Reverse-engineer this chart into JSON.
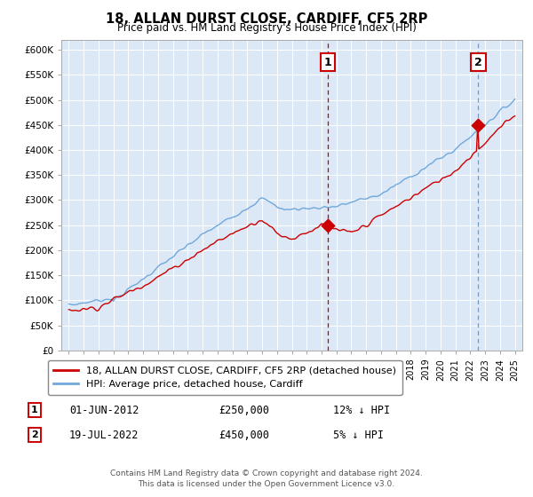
{
  "title": "18, ALLAN DURST CLOSE, CARDIFF, CF5 2RP",
  "subtitle": "Price paid vs. HM Land Registry's House Price Index (HPI)",
  "ylabel_ticks": [
    "£0",
    "£50K",
    "£100K",
    "£150K",
    "£200K",
    "£250K",
    "£300K",
    "£350K",
    "£400K",
    "£450K",
    "£500K",
    "£550K",
    "£600K"
  ],
  "ylim": [
    0,
    620000
  ],
  "ytick_vals": [
    0,
    50000,
    100000,
    150000,
    200000,
    250000,
    300000,
    350000,
    400000,
    450000,
    500000,
    550000,
    600000
  ],
  "sale1_date_x": 2012.42,
  "sale1_price": 250000,
  "sale1_label": "1",
  "sale1_date_str": "01-JUN-2012",
  "sale1_price_str": "£250,000",
  "sale1_hpi_str": "12% ↓ HPI",
  "sale2_date_x": 2022.54,
  "sale2_price": 450000,
  "sale2_label": "2",
  "sale2_date_str": "19-JUL-2022",
  "sale2_price_str": "£450,000",
  "sale2_hpi_str": "5% ↓ HPI",
  "hpi_line_color": "#6fa8dc",
  "price_line_color": "#cc0000",
  "vline1_color": "#cc0000",
  "vline2_color": "#7799bb",
  "bg_color": "#dce8f5",
  "legend_label_price": "18, ALLAN DURST CLOSE, CARDIFF, CF5 2RP (detached house)",
  "legend_label_hpi": "HPI: Average price, detached house, Cardiff",
  "footer": "Contains HM Land Registry data © Crown copyright and database right 2024.\nThis data is licensed under the Open Government Licence v3.0.",
  "xlim_start": 1994.5,
  "xlim_end": 2025.5
}
